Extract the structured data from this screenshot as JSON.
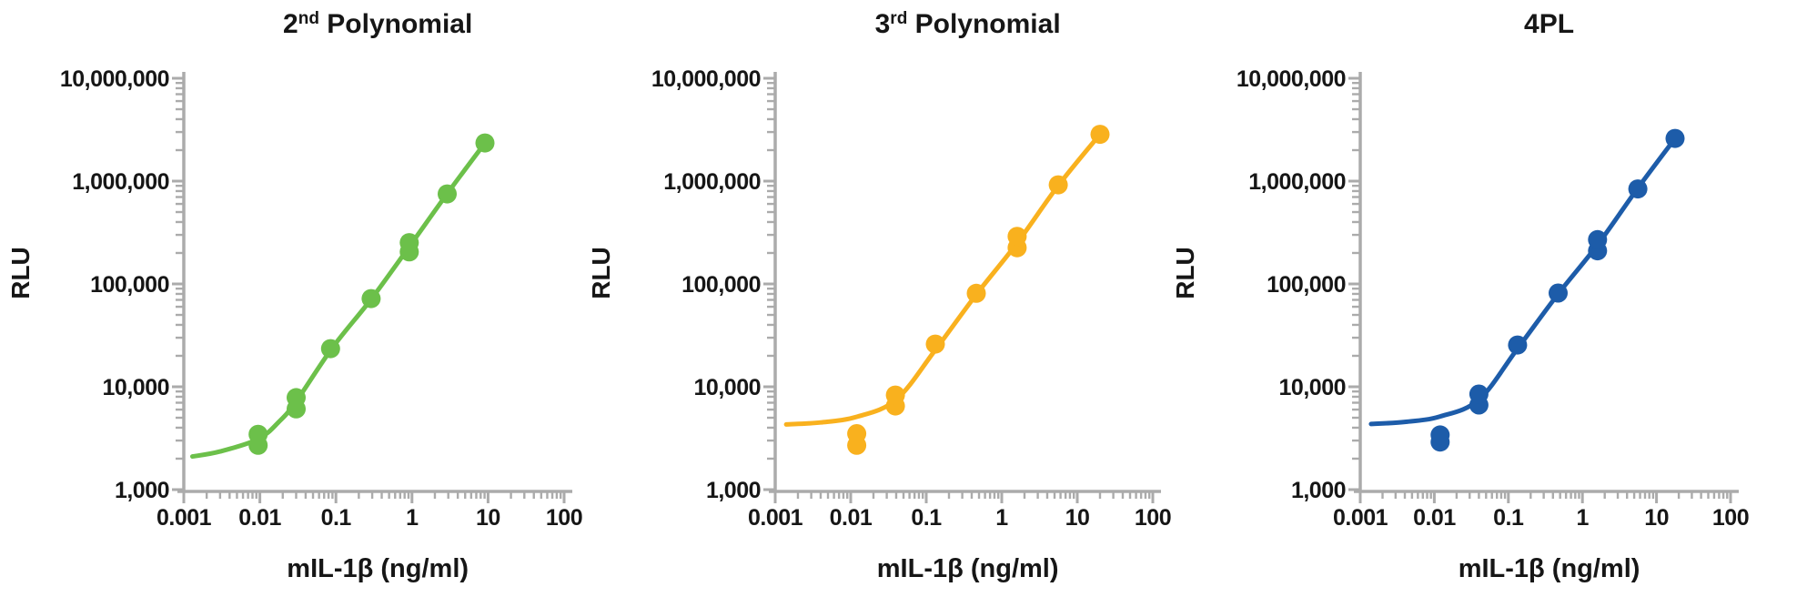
{
  "figure": {
    "y_axis_label": "RLU",
    "x_axis_label": "mIL-1β (ng/ml)",
    "axis_color": "#ABABAB",
    "text_color": "#161616"
  },
  "chart_data": [
    {
      "type": "scatter",
      "name": "2nd-polynomial",
      "title": "2nd Polynomial",
      "title_parts": {
        "text": "2",
        "sup": "nd",
        "rest": " Polynomial"
      },
      "color": "#6CC04A",
      "xlabel": "mIL-1β (ng/ml)",
      "ylabel": "RLU",
      "x_scale": "log",
      "y_scale": "log",
      "xlim": [
        0.001,
        100
      ],
      "ylim": [
        1000,
        10000000
      ],
      "x_tick_labels": [
        "0.001",
        "0.01",
        "0.1",
        "1",
        "10",
        "100"
      ],
      "x_tick_values": [
        0.001,
        0.01,
        0.1,
        1,
        10,
        100
      ],
      "y_tick_labels": [
        "1,000",
        "10,000",
        "100,000",
        "1,000,000",
        "10,000,000"
      ],
      "y_tick_values": [
        1000,
        10000,
        100000,
        1000000,
        10000000
      ],
      "points": [
        [
          0.0095,
          2700
        ],
        [
          0.0095,
          3450
        ],
        [
          0.03,
          6100
        ],
        [
          0.03,
          7850
        ],
        [
          0.085,
          23500
        ],
        [
          0.29,
          72000
        ],
        [
          0.92,
          205000
        ],
        [
          0.92,
          252000
        ],
        [
          2.9,
          750000
        ],
        [
          9.1,
          2350000
        ]
      ],
      "fit_curve": [
        [
          0.0013,
          2100
        ],
        [
          0.003,
          2350
        ],
        [
          0.0095,
          3100
        ],
        [
          0.018,
          4600
        ],
        [
          0.03,
          7200
        ],
        [
          0.09,
          24000
        ],
        [
          0.29,
          71000
        ],
        [
          0.92,
          230000
        ],
        [
          2.9,
          755000
        ],
        [
          9.1,
          2350000
        ]
      ]
    },
    {
      "type": "scatter",
      "name": "3rd-polynomial",
      "title": "3rd Polynomial",
      "title_parts": {
        "text": "3",
        "sup": "rd",
        "rest": " Polynomial"
      },
      "color": "#F9B11E",
      "xlabel": "mIL-1β (ng/ml)",
      "ylabel": "RLU",
      "x_scale": "log",
      "y_scale": "log",
      "xlim": [
        0.001,
        100
      ],
      "ylim": [
        1000,
        10000000
      ],
      "x_tick_labels": [
        "0.001",
        "0.01",
        "0.1",
        "1",
        "10",
        "100"
      ],
      "x_tick_values": [
        0.001,
        0.01,
        0.1,
        1,
        10,
        100
      ],
      "y_tick_labels": [
        "1,000",
        "10,000",
        "100,000",
        "1,000,000",
        "10,000,000"
      ],
      "y_tick_values": [
        1000,
        10000,
        100000,
        1000000,
        10000000
      ],
      "points": [
        [
          0.012,
          2700
        ],
        [
          0.012,
          3500
        ],
        [
          0.039,
          6500
        ],
        [
          0.039,
          8300
        ],
        [
          0.132,
          26000
        ],
        [
          0.46,
          81000
        ],
        [
          1.6,
          225000
        ],
        [
          1.6,
          290000
        ],
        [
          5.6,
          920000
        ],
        [
          20,
          2850000
        ]
      ],
      "fit_curve": [
        [
          0.0014,
          4300
        ],
        [
          0.004,
          4500
        ],
        [
          0.012,
          5100
        ],
        [
          0.04,
          7500
        ],
        [
          0.13,
          22500
        ],
        [
          0.46,
          79000
        ],
        [
          1.6,
          250000
        ],
        [
          5.6,
          905000
        ],
        [
          20,
          2850000
        ]
      ]
    },
    {
      "type": "scatter",
      "name": "4pl",
      "title": "4PL",
      "title_parts": {
        "text": "4PL",
        "sup": "",
        "rest": ""
      },
      "color": "#1D5CA9",
      "xlabel": "mIL-1β (ng/ml)",
      "ylabel": "RLU",
      "x_scale": "log",
      "y_scale": "log",
      "xlim": [
        0.001,
        100
      ],
      "ylim": [
        1000,
        10000000
      ],
      "x_tick_labels": [
        "0.001",
        "0.01",
        "0.1",
        "1",
        "10",
        "100"
      ],
      "x_tick_values": [
        0.001,
        0.01,
        0.1,
        1,
        10,
        100
      ],
      "y_tick_labels": [
        "1,000",
        "10,000",
        "100,000",
        "1,000,000",
        "10,000,000"
      ],
      "y_tick_values": [
        1000,
        10000,
        100000,
        1000000,
        10000000
      ],
      "points": [
        [
          0.012,
          2900
        ],
        [
          0.012,
          3400
        ],
        [
          0.04,
          6650
        ],
        [
          0.04,
          8500
        ],
        [
          0.133,
          25500
        ],
        [
          0.47,
          81500
        ],
        [
          1.6,
          210000
        ],
        [
          1.6,
          270000
        ],
        [
          5.6,
          840000
        ],
        [
          17.8,
          2600000
        ]
      ],
      "fit_curve": [
        [
          0.0014,
          4350
        ],
        [
          0.004,
          4550
        ],
        [
          0.012,
          5150
        ],
        [
          0.04,
          7500
        ],
        [
          0.13,
          23000
        ],
        [
          0.47,
          80000
        ],
        [
          1.6,
          240000
        ],
        [
          5.6,
          855000
        ],
        [
          17.8,
          2600000
        ]
      ]
    }
  ]
}
